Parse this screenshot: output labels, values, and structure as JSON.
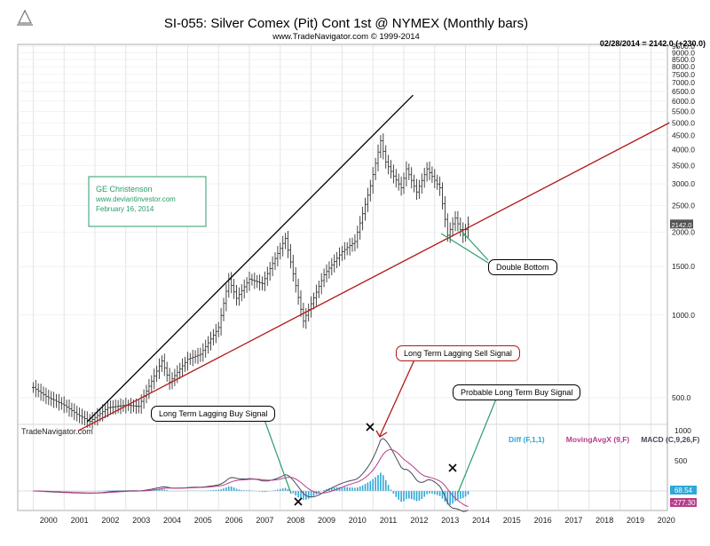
{
  "chart_data": {
    "type": "ohlc",
    "title": "SI-055:  Silver Comex (Pit) Cont 1st @ NYMEX  (Monthly bars)",
    "subtitle": "www.TradeNavigator.com © 1999-2014",
    "last_price_label": "02/28/2014 = 2142.0 (+230.0)",
    "last_price_marker": "2142.0",
    "watermark": "TradeNavigator.com",
    "author_box": [
      "GE Christenson",
      "www.deviantinvestor.com",
      "February 16, 2014"
    ],
    "x_ticks": [
      "2000",
      "2001",
      "2002",
      "2003",
      "2004",
      "2005",
      "2006",
      "2007",
      "2008",
      "2009",
      "2010",
      "2011",
      "2012",
      "2013",
      "2014",
      "2015",
      "2016",
      "2017",
      "2018",
      "2019",
      "2020"
    ],
    "y_scale": "log",
    "y_ticks": [
      500,
      1000,
      1500,
      2000,
      2500,
      3000,
      3500,
      4000,
      4500,
      5000,
      5500,
      6000,
      6500,
      7000,
      7500,
      8000,
      8500,
      9000,
      9500
    ],
    "y_tick_labels": [
      "500.0",
      "1000.0",
      "1500.0",
      "2000.0",
      "2500.0",
      "3000.0",
      "3500.0",
      "4000.0",
      "4500.0",
      "5000.0",
      "5500.0",
      "6000.0",
      "6500.0",
      "7000.0",
      "7500.0",
      "8000.0",
      "8500.0",
      "9000.0",
      "9500.0"
    ],
    "price_path": [
      [
        "2000-01",
        545
      ],
      [
        "2000-06",
        505
      ],
      [
        "2001-01",
        470
      ],
      [
        "2001-06",
        435
      ],
      [
        "2001-11",
        410
      ],
      [
        "2002-06",
        460
      ],
      [
        "2003-01",
        470
      ],
      [
        "2003-06",
        465
      ],
      [
        "2004-03",
        680
      ],
      [
        "2004-06",
        570
      ],
      [
        "2005-01",
        690
      ],
      [
        "2005-06",
        720
      ],
      [
        "2006-01",
        900
      ],
      [
        "2006-05",
        1350
      ],
      [
        "2006-08",
        1150
      ],
      [
        "2007-01",
        1350
      ],
      [
        "2007-06",
        1300
      ],
      [
        "2008-03",
        1900
      ],
      [
        "2008-10",
        950
      ],
      [
        "2009-06",
        1400
      ],
      [
        "2010-01",
        1700
      ],
      [
        "2010-06",
        1850
      ],
      [
        "2010-12",
        2950
      ],
      [
        "2011-04",
        4300
      ],
      [
        "2011-06",
        3600
      ],
      [
        "2011-09",
        3200
      ],
      [
        "2011-12",
        2900
      ],
      [
        "2012-02",
        3400
      ],
      [
        "2012-06",
        2800
      ],
      [
        "2012-10",
        3400
      ],
      [
        "2013-03",
        2900
      ],
      [
        "2013-06",
        1950
      ],
      [
        "2013-09",
        2250
      ],
      [
        "2013-12",
        1950
      ],
      [
        "2014-02",
        2142
      ]
    ],
    "trendlines": [
      {
        "color": "#000000",
        "from": [
          "2001-09",
          400
        ],
        "to": [
          "2011-04",
          4800
        ]
      },
      {
        "color": "#b01818",
        "from": [
          "2001-09",
          390
        ],
        "to": [
          "2013-06",
          1900
        ]
      }
    ],
    "indicator": {
      "legend": [
        {
          "text": "Diff (F,1,1)",
          "color": "#2fa7d8"
        },
        {
          "text": "MovingAvgX (9,F)",
          "color": "#b93c8a"
        },
        {
          "text": "MACD (C,9,26,F)",
          "color": "#47475a"
        }
      ],
      "y_ticks": [
        "1000",
        "500"
      ],
      "last_value_labels": [
        "68.54",
        "-277.30"
      ]
    },
    "annotations": {
      "double_bottom": "Double Bottom",
      "sell_signal": "Long Term Lagging Sell Signal",
      "buy_signal": "Long Term Lagging Buy Signal",
      "probable_buy": "Probable Long Term Buy Signal"
    }
  }
}
